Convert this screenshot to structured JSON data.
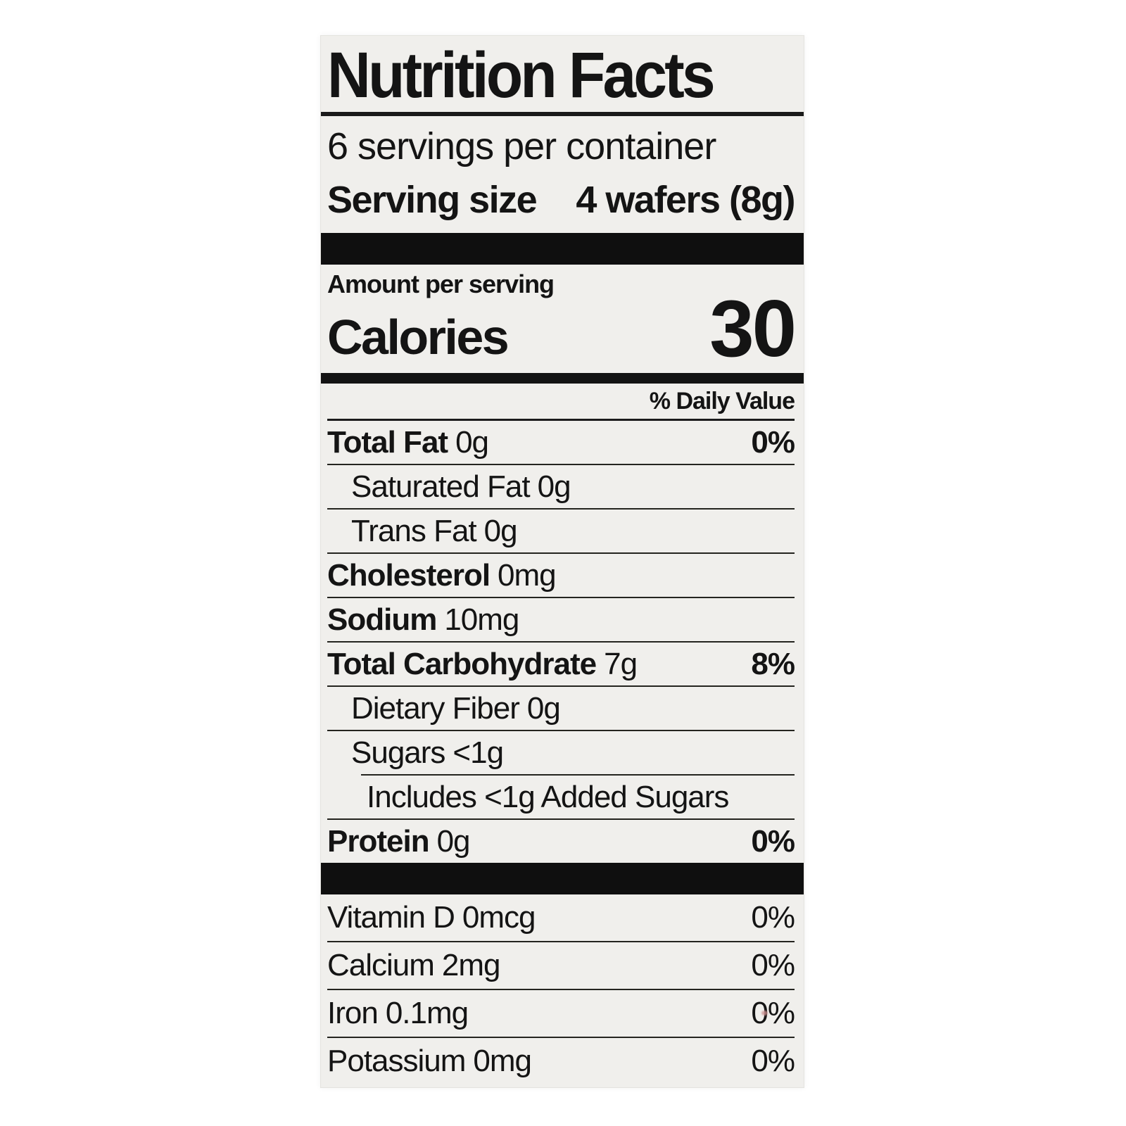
{
  "label": {
    "title": "Nutrition Facts",
    "servings_per_container": "6 servings per container",
    "serving_size_label": "Serving size",
    "serving_size_value": "4 wafers (8g)",
    "amount_per_serving": "Amount per serving",
    "calories_label": "Calories",
    "calories_value": "30",
    "daily_value_header": "% Daily Value",
    "nutrients": [
      {
        "name": "Total Fat",
        "amount": "0g",
        "dv": "0%"
      },
      {
        "name": "Saturated Fat",
        "amount": "0g",
        "dv": ""
      },
      {
        "name": "Trans Fat",
        "amount": "0g",
        "dv": ""
      },
      {
        "name": "Cholesterol",
        "amount": "0mg",
        "dv": ""
      },
      {
        "name": "Sodium",
        "amount": "10mg",
        "dv": ""
      },
      {
        "name": "Total Carbohydrate",
        "amount": "7g",
        "dv": "8%"
      },
      {
        "name": "Dietary Fiber",
        "amount": "0g",
        "dv": ""
      },
      {
        "name": "Sugars",
        "amount": "<1g",
        "dv": ""
      },
      {
        "name": "Includes <1g Added Sugars",
        "amount": "",
        "dv": ""
      },
      {
        "name": "Protein",
        "amount": "0g",
        "dv": "0%"
      }
    ],
    "micronutrients": [
      {
        "name": "Vitamin D",
        "amount": "0mcg",
        "dv": "0%"
      },
      {
        "name": "Calcium",
        "amount": "2mg",
        "dv": "0%"
      },
      {
        "name": "Iron",
        "amount": "0.1mg",
        "dv": "0%"
      },
      {
        "name": "Potassium",
        "amount": "0mg",
        "dv": "0%"
      }
    ]
  },
  "colors": {
    "page_background": "#ffffff",
    "label_background": "#f0efec",
    "text": "#141414",
    "bars": "#0f0f0f"
  }
}
